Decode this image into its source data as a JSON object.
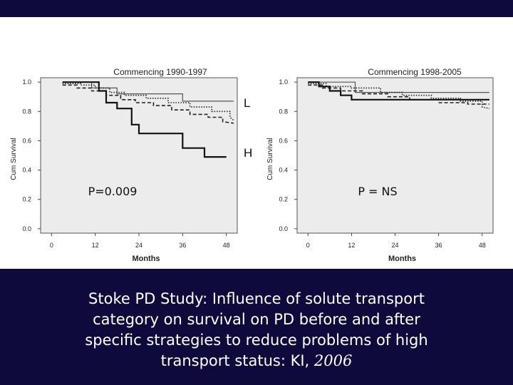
{
  "chart_data": [
    {
      "type": "line",
      "title": "Commencing 1990-1997",
      "xlabel": "Months",
      "ylabel": "Cum Survival",
      "xlim": [
        -3,
        51
      ],
      "ylim": [
        -0.03,
        1.03
      ],
      "x_ticks": [
        "0",
        "12",
        "24",
        "36",
        "48"
      ],
      "y_ticks": [
        "0.0",
        "0.2",
        "0.4",
        "0.6",
        "0.8",
        "1.0"
      ],
      "annotation": "P=0.009",
      "series": [
        {
          "name": "L",
          "style": "solid-thin",
          "color": "#555555",
          "points": [
            [
              3,
              1.0
            ],
            [
              11,
              1.0
            ],
            [
              11,
              0.96
            ],
            [
              18,
              0.96
            ],
            [
              18,
              0.92
            ],
            [
              36,
              0.92
            ],
            [
              36,
              0.87
            ],
            [
              50,
              0.87
            ]
          ]
        },
        {
          "name": "",
          "style": "dotted",
          "color": "#222222",
          "points": [
            [
              3,
              0.99
            ],
            [
              8,
              0.99
            ],
            [
              8,
              0.98
            ],
            [
              12,
              0.98
            ],
            [
              12,
              0.96
            ],
            [
              16,
              0.96
            ],
            [
              16,
              0.93
            ],
            [
              20,
              0.93
            ],
            [
              20,
              0.91
            ],
            [
              26,
              0.91
            ],
            [
              26,
              0.89
            ],
            [
              32,
              0.89
            ],
            [
              32,
              0.86
            ],
            [
              38,
              0.86
            ],
            [
              38,
              0.83
            ],
            [
              44,
              0.83
            ],
            [
              44,
              0.8
            ],
            [
              49,
              0.8
            ],
            [
              49,
              0.76
            ],
            [
              50,
              0.74
            ]
          ]
        },
        {
          "name": "",
          "style": "dashed",
          "color": "#222222",
          "points": [
            [
              3,
              0.98
            ],
            [
              7,
              0.98
            ],
            [
              7,
              0.96
            ],
            [
              11,
              0.96
            ],
            [
              11,
              0.94
            ],
            [
              15,
              0.94
            ],
            [
              15,
              0.91
            ],
            [
              19,
              0.91
            ],
            [
              19,
              0.88
            ],
            [
              23,
              0.88
            ],
            [
              23,
              0.86
            ],
            [
              28,
              0.86
            ],
            [
              28,
              0.84
            ],
            [
              33,
              0.84
            ],
            [
              33,
              0.81
            ],
            [
              38,
              0.81
            ],
            [
              38,
              0.78
            ],
            [
              43,
              0.78
            ],
            [
              43,
              0.76
            ],
            [
              47,
              0.76
            ],
            [
              47,
              0.73
            ],
            [
              50,
              0.72
            ]
          ]
        },
        {
          "name": "H",
          "style": "solid-thick",
          "color": "#111111",
          "points": [
            [
              3,
              1.0
            ],
            [
              13,
              1.0
            ],
            [
              13,
              0.94
            ],
            [
              15,
              0.94
            ],
            [
              15,
              0.86
            ],
            [
              18,
              0.86
            ],
            [
              18,
              0.82
            ],
            [
              22,
              0.82
            ],
            [
              22,
              0.71
            ],
            [
              24,
              0.71
            ],
            [
              24,
              0.65
            ],
            [
              36,
              0.65
            ],
            [
              36,
              0.55
            ],
            [
              42,
              0.55
            ],
            [
              42,
              0.49
            ],
            [
              48,
              0.49
            ]
          ]
        }
      ]
    },
    {
      "type": "line",
      "title": "Commencing 1998-2005",
      "xlabel": "Months",
      "ylabel": "Cum Survival",
      "xlim": [
        -3,
        51
      ],
      "ylim": [
        -0.03,
        1.03
      ],
      "x_ticks": [
        "0",
        "12",
        "24",
        "36",
        "48"
      ],
      "y_ticks": [
        "0.0",
        "0.2",
        "0.4",
        "0.6",
        "0.8",
        "1.0"
      ],
      "annotation": "P = NS",
      "series": [
        {
          "name": "",
          "style": "solid-thin",
          "color": "#555555",
          "points": [
            [
              0,
              1.0
            ],
            [
              13,
              1.0
            ],
            [
              13,
              0.93
            ],
            [
              50,
              0.93
            ]
          ]
        },
        {
          "name": "",
          "style": "dotted",
          "color": "#222222",
          "points": [
            [
              0,
              0.99
            ],
            [
              5,
              0.99
            ],
            [
              5,
              0.97
            ],
            [
              12,
              0.97
            ],
            [
              12,
              0.96
            ],
            [
              20,
              0.96
            ],
            [
              20,
              0.93
            ],
            [
              26,
              0.93
            ],
            [
              26,
              0.91
            ],
            [
              34,
              0.91
            ],
            [
              34,
              0.89
            ],
            [
              42,
              0.89
            ],
            [
              42,
              0.87
            ],
            [
              48,
              0.87
            ],
            [
              48,
              0.83
            ],
            [
              50,
              0.82
            ]
          ]
        },
        {
          "name": "",
          "style": "dashed",
          "color": "#222222",
          "points": [
            [
              0,
              0.98
            ],
            [
              4,
              0.98
            ],
            [
              4,
              0.96
            ],
            [
              9,
              0.96
            ],
            [
              9,
              0.94
            ],
            [
              15,
              0.94
            ],
            [
              15,
              0.92
            ],
            [
              22,
              0.92
            ],
            [
              22,
              0.9
            ],
            [
              28,
              0.9
            ],
            [
              28,
              0.88
            ],
            [
              36,
              0.88
            ],
            [
              36,
              0.86
            ],
            [
              44,
              0.86
            ],
            [
              44,
              0.85
            ],
            [
              50,
              0.85
            ]
          ]
        },
        {
          "name": "",
          "style": "solid-thick",
          "color": "#111111",
          "points": [
            [
              0,
              1.0
            ],
            [
              3,
              1.0
            ],
            [
              3,
              0.97
            ],
            [
              6,
              0.97
            ],
            [
              6,
              0.94
            ],
            [
              9,
              0.94
            ],
            [
              9,
              0.91
            ],
            [
              12,
              0.91
            ],
            [
              12,
              0.88
            ],
            [
              50,
              0.88
            ]
          ]
        }
      ]
    }
  ],
  "caption": {
    "line1": "Stoke PD Study: Influence of solute transport",
    "line2": "category on survival on PD before and after",
    "line3": "specific strategies to reduce problems of high",
    "line4_prefix": "transport status: KI, ",
    "line4_year": "2006"
  }
}
